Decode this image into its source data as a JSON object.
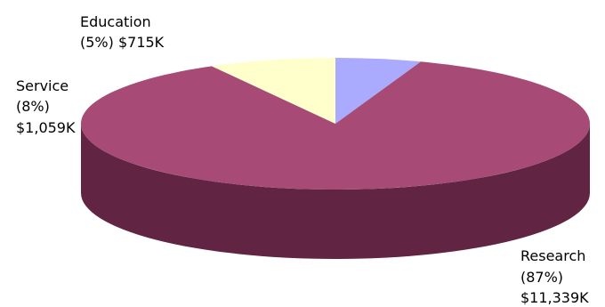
{
  "chart_data": {
    "type": "pie",
    "style": "3d",
    "categories": [
      "Education",
      "Research",
      "Service"
    ],
    "values": [
      715,
      11339,
      1059
    ],
    "percents": [
      "5%",
      "87%",
      "8%"
    ],
    "amount_labels": [
      "$715K",
      "$11,339K",
      "$1,059K"
    ],
    "labels": {
      "education": {
        "name": "Education",
        "line2": "(5%) $715K"
      },
      "service": {
        "name": "Service",
        "line2": "(8%)",
        "line3": "$1,059K"
      },
      "research": {
        "name": "Research",
        "line2": "(87%)",
        "line3": "$11,339K"
      }
    },
    "colors": {
      "education": "#aaaaff",
      "research": "#a74a76",
      "research_side": "#622443",
      "service": "#ffffcc"
    },
    "legend": "none",
    "grid": false
  }
}
